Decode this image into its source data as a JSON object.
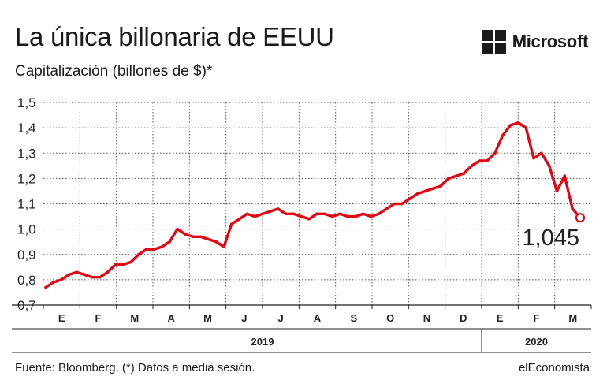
{
  "header": {
    "title": "La única billonaria de EEUU",
    "subtitle": "Capitalización (billones de $)*",
    "brand": "Microsoft"
  },
  "footer": {
    "source": "Fuente: Bloomberg. (*) Datos a media sesión.",
    "publisher": "elEconomista"
  },
  "chart_data": {
    "type": "line",
    "title": "La única billonaria de EEUU",
    "subtitle": "Capitalización (billones de $)*",
    "xlabel": "",
    "ylabel": "",
    "ylim": [
      0.7,
      1.5
    ],
    "y_ticks": [
      "1,5",
      "1,4",
      "1,3",
      "1,2",
      "1,1",
      "1,0",
      "0,9",
      "0,8",
      "0,7"
    ],
    "y_tick_values": [
      1.5,
      1.4,
      1.3,
      1.2,
      1.1,
      1.0,
      0.9,
      0.8,
      0.7
    ],
    "grid": true,
    "months": [
      "E",
      "F",
      "M",
      "A",
      "M",
      "J",
      "J",
      "A",
      "S",
      "O",
      "N",
      "D",
      "E",
      "F",
      "M"
    ],
    "years": [
      {
        "label": "2019",
        "months": 12
      },
      {
        "label": "2020",
        "months": 3
      }
    ],
    "series": [
      {
        "color": "#e30613",
        "values": [
          0.77,
          0.79,
          0.8,
          0.82,
          0.83,
          0.82,
          0.81,
          0.81,
          0.83,
          0.86,
          0.86,
          0.87,
          0.9,
          0.92,
          0.92,
          0.93,
          0.95,
          1.0,
          0.98,
          0.97,
          0.97,
          0.96,
          0.95,
          0.93,
          1.02,
          1.04,
          1.06,
          1.05,
          1.06,
          1.07,
          1.08,
          1.06,
          1.06,
          1.05,
          1.04,
          1.06,
          1.06,
          1.05,
          1.06,
          1.05,
          1.05,
          1.06,
          1.05,
          1.06,
          1.08,
          1.1,
          1.1,
          1.12,
          1.14,
          1.15,
          1.16,
          1.17,
          1.2,
          1.21,
          1.22,
          1.25,
          1.27,
          1.27,
          1.3,
          1.37,
          1.41,
          1.42,
          1.4,
          1.28,
          1.3,
          1.25,
          1.15,
          1.21,
          1.08,
          1.045
        ]
      }
    ],
    "last_value": 1.045,
    "last_value_label": "1,045"
  }
}
